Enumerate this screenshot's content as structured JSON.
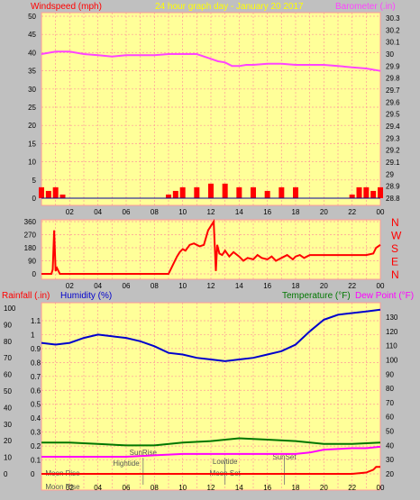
{
  "header": {
    "left_label": "Windspeed (mph)",
    "center_label": "24 hour graph day - January 20 2017",
    "right_label": "Barometer (.in)"
  },
  "panel1": {
    "right_ticks": [
      "30.3",
      "30.2",
      "30.1",
      "30",
      "29.9",
      "29.8",
      "29.7",
      "29.6",
      "29.5",
      "29.4",
      "29.3",
      "29.2",
      "29.1",
      "29",
      "28.9",
      "28.8"
    ],
    "left_ticks": [
      "50",
      "45",
      "40",
      "35",
      "30",
      "25",
      "20",
      "15",
      "10",
      "5",
      "0"
    ],
    "x_ticks": [
      "02",
      "04",
      "06",
      "08",
      "10",
      "12",
      "14",
      "16",
      "18",
      "20",
      "22",
      "00"
    ]
  },
  "panel2": {
    "left_ticks": [
      "360",
      "270",
      "180",
      "90",
      "0"
    ],
    "compass": [
      "N",
      "W",
      "S",
      "E",
      "N"
    ],
    "x_ticks": [
      "02",
      "04",
      "06",
      "08",
      "10",
      "12",
      "14",
      "16",
      "18",
      "20",
      "22",
      "00"
    ]
  },
  "panel3": {
    "rain_label": "Rainfall (.in)",
    "humidity_label": "Humidity (%)",
    "temperature_label": "Temperature (°F)",
    "dewpoint_label": "Dew Point (°F)",
    "rain_ticks": [
      "1.1",
      "1",
      "0.9",
      "0.8",
      "0.7",
      "0.6",
      "0.5",
      "0.4",
      "0.3",
      "0.2",
      "0.1",
      "0"
    ],
    "humidity_ticks": [
      "100",
      "90",
      "80",
      "70",
      "60",
      "50",
      "40",
      "30",
      "20",
      "10",
      "0"
    ],
    "temp_ticks": [
      "130",
      "120",
      "110",
      "100",
      "90",
      "80",
      "70",
      "60",
      "50",
      "40",
      "30",
      "20"
    ],
    "x_ticks": [
      "02",
      "04",
      "06",
      "08",
      "10",
      "12",
      "14",
      "16",
      "18",
      "20",
      "22",
      "00"
    ],
    "annotations": {
      "moon_rise": "Moon Rise",
      "sunrise": "SunRise",
      "hightide": "Hightide",
      "lowtide": "Lowtide",
      "moon_set": "Moon Set",
      "sunset": "SunSet"
    }
  },
  "colors": {
    "plot_bg": "#ffff99",
    "grid": "#ff9999",
    "windspeed": "#ff0000",
    "barometer": "#ff44ff",
    "direction": "#ff0000",
    "humidity": "#0000cc",
    "temperature": "#007700",
    "dewpoint": "#ff00ff",
    "rain": "#ff0000"
  },
  "chart_data": [
    {
      "type": "line",
      "title": "24 hour graph day - January 20 2017",
      "xlabel": "",
      "x_categories": [
        "02",
        "04",
        "06",
        "08",
        "10",
        "12",
        "14",
        "16",
        "18",
        "20",
        "22",
        "00"
      ],
      "y_left_label": "Windspeed (mph)",
      "y_left_lim": [
        0,
        50
      ],
      "y_right_label": "Barometer (.in)",
      "y_right_lim": [
        28.8,
        30.3
      ],
      "series": [
        {
          "name": "Barometer (.in)",
          "axis": "right",
          "x": [
            0,
            1,
            2,
            3,
            4,
            5,
            6,
            7,
            8,
            9,
            10,
            11,
            12,
            12.5,
            13,
            13.5,
            14,
            14.5,
            15,
            16,
            17,
            18,
            19,
            20,
            21,
            22,
            23,
            24
          ],
          "values": [
            30.0,
            30.02,
            30.02,
            30.0,
            29.99,
            29.98,
            29.99,
            29.99,
            29.99,
            30.0,
            30.0,
            30.0,
            29.96,
            29.94,
            29.93,
            29.9,
            29.9,
            29.91,
            29.91,
            29.92,
            29.92,
            29.91,
            29.91,
            29.91,
            29.9,
            29.89,
            29.88,
            29.86
          ]
        },
        {
          "name": "Windspeed (mph)",
          "axis": "left",
          "x": [
            0,
            0.5,
            1,
            1.5,
            2,
            4,
            6,
            8,
            9,
            9.5,
            10,
            11,
            12,
            13,
            14,
            15,
            16,
            17,
            18,
            19,
            20,
            21,
            22,
            22.5,
            23,
            23.5,
            24
          ],
          "values": [
            3,
            2,
            3,
            1,
            0,
            0,
            0,
            0,
            1,
            2,
            3,
            3,
            4,
            4,
            3,
            3,
            2,
            3,
            3,
            0,
            0,
            0,
            1,
            3,
            3,
            2,
            3
          ]
        }
      ]
    },
    {
      "type": "line",
      "title": "",
      "xlabel": "",
      "x_categories": [
        "02",
        "04",
        "06",
        "08",
        "10",
        "12",
        "14",
        "16",
        "18",
        "20",
        "22",
        "00"
      ],
      "y_left_lim": [
        0,
        360
      ],
      "series": [
        {
          "name": "",
          "x": [
            0,
            0.7,
            0.8,
            0.9,
            1.0,
            1.1,
            1.3,
            2,
            4,
            6,
            8,
            9,
            9.3,
            9.6,
            9.8,
            10,
            10.2,
            10.5,
            10.8,
            11.2,
            11.5,
            11.8,
            12,
            12.2,
            12.35,
            12.45,
            12.6,
            12.8,
            13,
            13.3,
            13.6,
            14,
            14.3,
            14.6,
            15,
            15.3,
            15.6,
            16,
            16.3,
            16.6,
            17,
            17.4,
            17.8,
            18,
            18.3,
            18.6,
            19,
            20,
            21,
            22,
            23,
            23.5,
            23.7,
            24
          ],
          "values": [
            0,
            0,
            30,
            300,
            20,
            40,
            0,
            0,
            0,
            0,
            0,
            0,
            60,
            120,
            150,
            170,
            160,
            200,
            210,
            190,
            200,
            300,
            330,
            360,
            20,
            200,
            140,
            130,
            160,
            120,
            150,
            120,
            90,
            110,
            100,
            130,
            110,
            100,
            120,
            90,
            110,
            130,
            100,
            120,
            130,
            110,
            130,
            130,
            130,
            130,
            130,
            140,
            180,
            200
          ]
        }
      ]
    },
    {
      "type": "line",
      "title": "",
      "xlabel": "",
      "x_categories": [
        "02",
        "04",
        "06",
        "08",
        "10",
        "12",
        "14",
        "16",
        "18",
        "20",
        "22",
        "00"
      ],
      "y_rain_label": "Rainfall (.in)",
      "y_rain_lim": [
        0,
        1.15
      ],
      "y_humidity_label": "Humidity (%)",
      "y_humidity_lim": [
        0,
        105
      ],
      "y_temp_label": "Temperature (°F)",
      "y_temp_lim": [
        20,
        135
      ],
      "series": [
        {
          "name": "Humidity (%)",
          "axis": "humidity",
          "x": [
            0,
            1,
            2,
            3,
            4,
            5,
            6,
            7,
            8,
            9,
            10,
            11,
            12,
            13,
            14,
            15,
            16,
            17,
            18,
            19,
            20,
            21,
            22,
            23,
            24
          ],
          "values": [
            79,
            78,
            79,
            82,
            84,
            83,
            82,
            80,
            77,
            73,
            72,
            70,
            69,
            68,
            69,
            70,
            72,
            74,
            78,
            86,
            93,
            96,
            97,
            98,
            99
          ]
        },
        {
          "name": "Temperature (°F)",
          "axis": "temp",
          "x": [
            0,
            2,
            4,
            6,
            8,
            10,
            12,
            14,
            16,
            18,
            20,
            22,
            24
          ],
          "values": [
            42,
            42,
            41,
            40,
            40,
            42,
            43,
            45,
            44,
            43,
            41,
            41,
            42
          ]
        },
        {
          "name": "Dew Point (°F)",
          "axis": "temp",
          "x": [
            0,
            2,
            4,
            6,
            8,
            10,
            12,
            14,
            16,
            18,
            19,
            20,
            22,
            23,
            24
          ],
          "values": [
            32,
            32,
            32,
            32,
            33,
            34,
            34,
            34,
            34,
            34,
            35,
            37,
            38,
            38,
            39
          ]
        },
        {
          "name": "Rainfall (.in)",
          "axis": "rain",
          "x": [
            0,
            22,
            23,
            23.5,
            23.7,
            24
          ],
          "values": [
            0,
            0,
            0.01,
            0.03,
            0.05,
            0.05
          ]
        }
      ]
    }
  ]
}
